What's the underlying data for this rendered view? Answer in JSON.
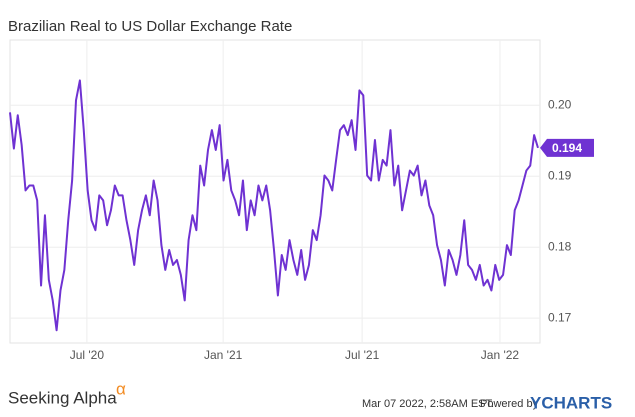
{
  "chart_data": {
    "type": "line",
    "title": "Brazilian Real to US Dollar Exchange Rate",
    "color": "#6f32d2",
    "grid": true,
    "values": [
      0.199,
      0.1939,
      0.1986,
      0.1944,
      0.188,
      0.1887,
      0.1887,
      0.1866,
      0.1746,
      0.1845,
      0.1754,
      0.1725,
      0.1683,
      0.1739,
      0.1768,
      0.1838,
      0.1894,
      0.2007,
      0.2035,
      0.1965,
      0.188,
      0.1838,
      0.1824,
      0.1873,
      0.1866,
      0.1831,
      0.1852,
      0.1887,
      0.1873,
      0.1873,
      0.1838,
      0.181,
      0.1775,
      0.1824,
      0.1852,
      0.1873,
      0.1845,
      0.1894,
      0.1866,
      0.1803,
      0.1768,
      0.1796,
      0.1775,
      0.1782,
      0.1761,
      0.1725,
      0.181,
      0.1845,
      0.1824,
      0.1915,
      0.1887,
      0.1937,
      0.1965,
      0.1937,
      0.1972,
      0.1894,
      0.1923,
      0.188,
      0.1866,
      0.1845,
      0.1894,
      0.1824,
      0.1866,
      0.1845,
      0.1887,
      0.1866,
      0.1887,
      0.1852,
      0.1796,
      0.1732,
      0.1789,
      0.1768,
      0.181,
      0.1782,
      0.1761,
      0.1796,
      0.1754,
      0.1775,
      0.1824,
      0.181,
      0.1845,
      0.1901,
      0.1894,
      0.188,
      0.1923,
      0.1965,
      0.1972,
      0.1958,
      0.1979,
      0.1937,
      0.2021,
      0.2014,
      0.1901,
      0.1894,
      0.1951,
      0.1894,
      0.1923,
      0.1915,
      0.1965,
      0.1887,
      0.1915,
      0.1852,
      0.188,
      0.1908,
      0.1901,
      0.1915,
      0.1873,
      0.1894,
      0.1859,
      0.1845,
      0.1803,
      0.1782,
      0.1746,
      0.1796,
      0.1782,
      0.1761,
      0.1789,
      0.1838,
      0.1775,
      0.1768,
      0.1754,
      0.1775,
      0.1746,
      0.1754,
      0.1739,
      0.1775,
      0.1754,
      0.1761,
      0.1803,
      0.1789,
      0.1852,
      0.1866,
      0.1887,
      0.1908,
      0.1915,
      0.1958,
      0.194
    ],
    "xlim": [
      0,
      136
    ],
    "xticks": [
      {
        "value": 19.8,
        "label": "Jul '20"
      },
      {
        "value": 54.9,
        "label": "Jan '21"
      },
      {
        "value": 90.7,
        "label": "Jul '21"
      },
      {
        "value": 126.2,
        "label": "Jan '22"
      }
    ],
    "ylim": [
      0.1665,
      0.2092
    ],
    "yticks": [
      0.17,
      0.18,
      0.19,
      {
        "value": 0.2,
        "label": "0.20"
      }
    ]
  },
  "footer": {
    "brand": "Seeking Alpha",
    "alpha": "α",
    "timestamp": "Mar 07 2022, 2:58AM EST.",
    "powered": "Powered by",
    "ycharts": "YCHARTS"
  }
}
